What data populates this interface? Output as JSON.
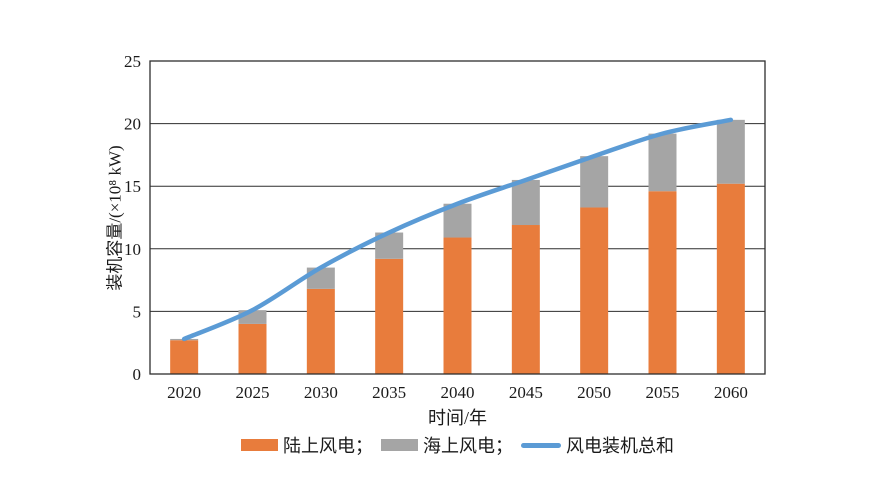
{
  "chart_data": {
    "type": "bar",
    "stacked": true,
    "line_overlay": true,
    "categories": [
      "2020",
      "2025",
      "2030",
      "2035",
      "2040",
      "2045",
      "2050",
      "2055",
      "2060"
    ],
    "series": [
      {
        "name": "陆上风电",
        "type": "bar",
        "color": "#E87C3C",
        "values": [
          2.7,
          4.0,
          6.8,
          9.2,
          10.9,
          11.9,
          13.3,
          14.6,
          15.2
        ]
      },
      {
        "name": "海上风电",
        "type": "bar",
        "color": "#A5A5A5",
        "values": [
          0.1,
          1.1,
          1.7,
          2.1,
          2.7,
          3.6,
          4.1,
          4.6,
          5.1
        ]
      },
      {
        "name": "风电装机总和",
        "type": "line",
        "color": "#5B9BD5",
        "values": [
          2.8,
          5.1,
          8.5,
          11.3,
          13.6,
          15.5,
          17.4,
          19.2,
          20.3
        ]
      }
    ],
    "title": "",
    "xlabel": "时间/年",
    "ylabel": "装机容量/(×10⁸ kW)",
    "ylim": [
      0,
      25
    ],
    "yticks": [
      0,
      5,
      10,
      15,
      20,
      25
    ],
    "grid": true,
    "legend_position": "bottom"
  },
  "legend": {
    "items": [
      {
        "label": "陆上风电；",
        "swatch": "orange-rect",
        "color": "#E87C3C"
      },
      {
        "label": "海上风电；",
        "swatch": "gray-rect",
        "color": "#A5A5A5"
      },
      {
        "label": "风电装机总和",
        "swatch": "blue-line",
        "color": "#5B9BD5"
      }
    ]
  },
  "colors": {
    "onshore_bar": "#E87C3C",
    "offshore_bar": "#A5A5A5",
    "total_line": "#5B9BD5",
    "axis": "#2e2e2e",
    "grid": "#2e2e2e",
    "text": "#1a1a1a",
    "background": "#ffffff"
  }
}
